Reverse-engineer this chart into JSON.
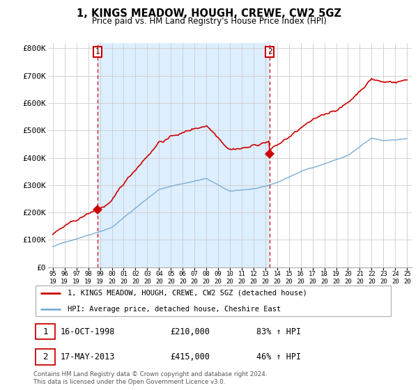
{
  "title": "1, KINGS MEADOW, HOUGH, CREWE, CW2 5GZ",
  "subtitle": "Price paid vs. HM Land Registry's House Price Index (HPI)",
  "red_line_label": "1, KINGS MEADOW, HOUGH, CREWE, CW2 5GZ (detached house)",
  "blue_line_label": "HPI: Average price, detached house, Cheshire East",
  "annotation1_date": "16-OCT-1998",
  "annotation1_price": "£210,000",
  "annotation1_hpi": "83% ↑ HPI",
  "annotation2_date": "17-MAY-2013",
  "annotation2_price": "£415,000",
  "annotation2_hpi": "46% ↑ HPI",
  "footer": "Contains HM Land Registry data © Crown copyright and database right 2024.\nThis data is licensed under the Open Government Licence v3.0.",
  "red_color": "#cc0000",
  "blue_color": "#7aadd4",
  "vline_color": "#cc0000",
  "grid_color": "#cccccc",
  "bg_fill_color": "#ddeeff",
  "background_color": "#ffffff",
  "ylim": [
    0,
    820000
  ],
  "yticks": [
    0,
    100000,
    200000,
    300000,
    400000,
    500000,
    600000,
    700000,
    800000
  ],
  "ytick_labels": [
    "£0",
    "£100K",
    "£200K",
    "£300K",
    "£400K",
    "£500K",
    "£600K",
    "£700K",
    "£800K"
  ],
  "marker1_x": 1998.79,
  "marker1_y": 210000,
  "marker2_x": 2013.37,
  "marker2_y": 415000,
  "xlim_left": 1994.6,
  "xlim_right": 2025.4
}
